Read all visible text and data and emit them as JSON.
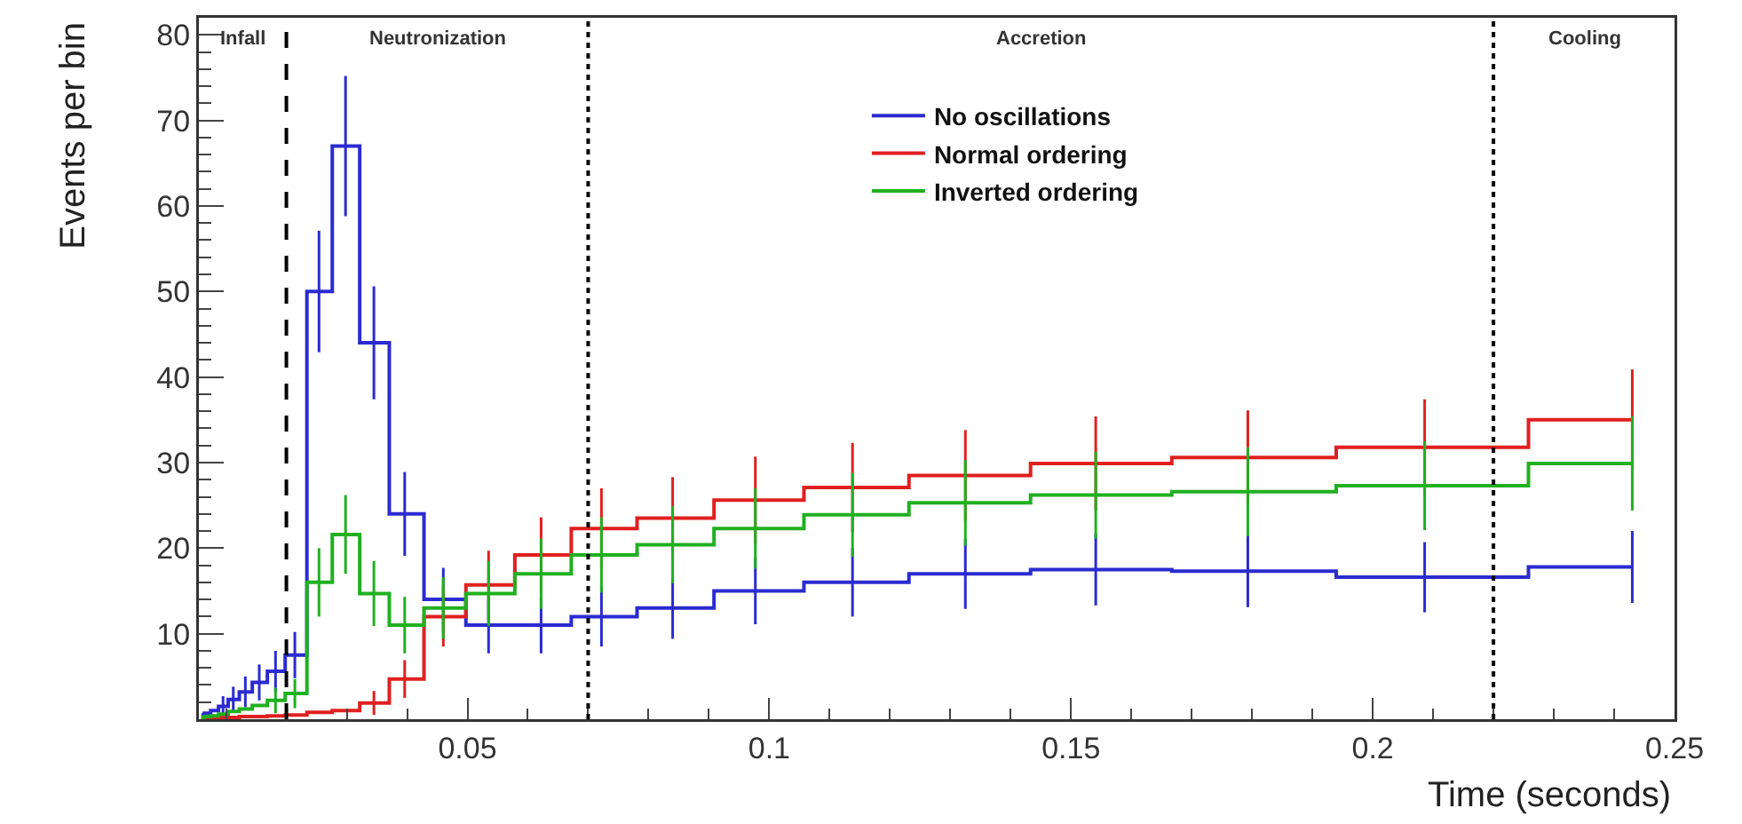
{
  "chart_data": {
    "type": "step",
    "xlabel": "Time (seconds)",
    "ylabel": "Events per bin",
    "x": [
      0.0059,
      0.0069,
      0.008,
      0.0095,
      0.0112,
      0.0132,
      0.0155,
      0.0182,
      0.0214,
      0.0254,
      0.0298,
      0.0345,
      0.0396,
      0.046,
      0.0535,
      0.0622,
      0.0722,
      0.084,
      0.0977,
      0.1138,
      0.1325,
      0.1541,
      0.1793,
      0.2086,
      0.243
    ],
    "series": [
      {
        "name": "No oscillations",
        "color": "#2b2bd0",
        "values": [
          0.5,
          0.7,
          1,
          1.5,
          2.3,
          3.2,
          4.3,
          5.6,
          7.5,
          50,
          67,
          44,
          24,
          14,
          11,
          11,
          12,
          13,
          15,
          16,
          17,
          17.5,
          17.3,
          16.6,
          17.8
        ],
        "errors": [
          null,
          null,
          null,
          1.2,
          1.5,
          1.8,
          2.1,
          2.4,
          2.7,
          7.1,
          8.2,
          6.6,
          4.9,
          3.7,
          3.3,
          3.3,
          3.5,
          3.6,
          3.9,
          4,
          4.1,
          4.2,
          4.2,
          4.1,
          4.2
        ]
      },
      {
        "name": "Normal ordering",
        "color": "#e02020",
        "values": [
          0.1,
          0.1,
          0.1,
          0.2,
          0.2,
          0.3,
          0.3,
          0.4,
          0.5,
          0.8,
          1,
          1.9,
          4.7,
          12,
          15.7,
          19.2,
          22.3,
          23.5,
          25.6,
          27.1,
          28.5,
          29.9,
          30.6,
          31.8,
          35
        ],
        "errors": [
          null,
          null,
          null,
          null,
          null,
          null,
          null,
          null,
          null,
          null,
          null,
          1.4,
          2.2,
          3.5,
          4,
          4.4,
          4.7,
          4.8,
          5.1,
          5.2,
          5.3,
          5.5,
          5.5,
          5.6,
          5.9
        ]
      },
      {
        "name": "Inverted ordering",
        "color": "#20b020",
        "values": [
          0.2,
          0.3,
          0.4,
          0.6,
          0.9,
          1.2,
          1.6,
          2.2,
          3,
          16,
          21.6,
          14.7,
          11,
          13,
          14.7,
          17,
          19.2,
          20.4,
          22.3,
          23.9,
          25.3,
          26.2,
          26.6,
          27.3,
          29.9
        ],
        "errors": [
          null,
          null,
          null,
          null,
          null,
          null,
          null,
          1.5,
          1.7,
          4,
          4.6,
          3.8,
          3.3,
          3.6,
          3.8,
          4.1,
          4.4,
          4.5,
          4.7,
          4.9,
          5,
          5.1,
          5.2,
          5.2,
          5.5
        ]
      }
    ],
    "xlim": [
      0.0055,
      0.25
    ],
    "xticks": [
      0.05,
      0.1,
      0.15,
      0.2,
      0.25
    ],
    "ylim": [
      0,
      82
    ],
    "yticks": [
      10,
      20,
      30,
      40,
      50,
      60,
      70,
      80
    ],
    "ref_lines": [
      {
        "axis": "x",
        "value": 0.02,
        "line_style": "dashed",
        "color": "#000000"
      },
      {
        "axis": "x",
        "value": 0.07,
        "line_style": "dotted",
        "color": "#000000"
      },
      {
        "axis": "x",
        "value": 0.22,
        "line_style": "dotted",
        "color": "#000000"
      }
    ],
    "annotations": [
      "Infall",
      "Neutronization",
      "Accretion",
      "Cooling"
    ],
    "legend": "top",
    "grid": false
  }
}
